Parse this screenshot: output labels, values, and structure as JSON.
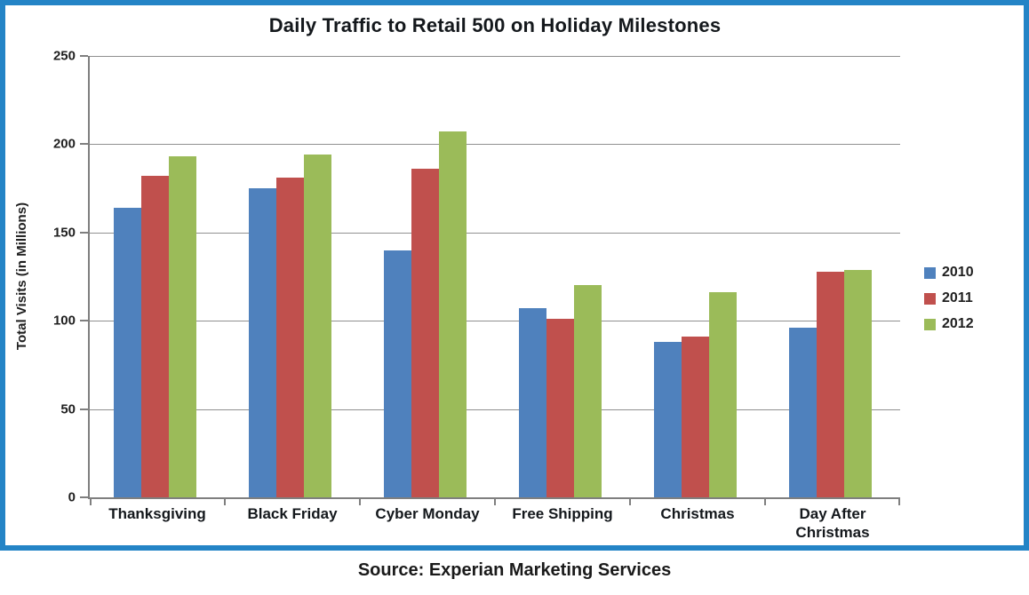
{
  "chart_data": {
    "type": "bar",
    "title": "Daily Traffic to Retail 500 on Holiday Milestones",
    "ylabel": "Total Visits (in Millions)",
    "xlabel": "",
    "ylim": [
      0,
      250
    ],
    "ytick_interval": 50,
    "yticks": [
      0,
      50,
      100,
      150,
      200,
      250
    ],
    "grid": "horizontal",
    "legend_position": "right",
    "categories": [
      "Thanksgiving",
      "Black Friday",
      "Cyber Monday",
      "Free Shipping",
      "Christmas",
      "Day After Christmas"
    ],
    "series": [
      {
        "name": "2010",
        "color": "#4F81BD",
        "values": [
          164,
          175,
          140,
          107,
          88,
          96
        ]
      },
      {
        "name": "2011",
        "color": "#C0504D",
        "values": [
          182,
          181,
          186,
          101,
          91,
          128
        ]
      },
      {
        "name": "2012",
        "color": "#9BBB59",
        "values": [
          193,
          194,
          207,
          120,
          116,
          129
        ]
      }
    ]
  },
  "source": "Source: Experian Marketing Services",
  "frame_color": "#2484C6"
}
